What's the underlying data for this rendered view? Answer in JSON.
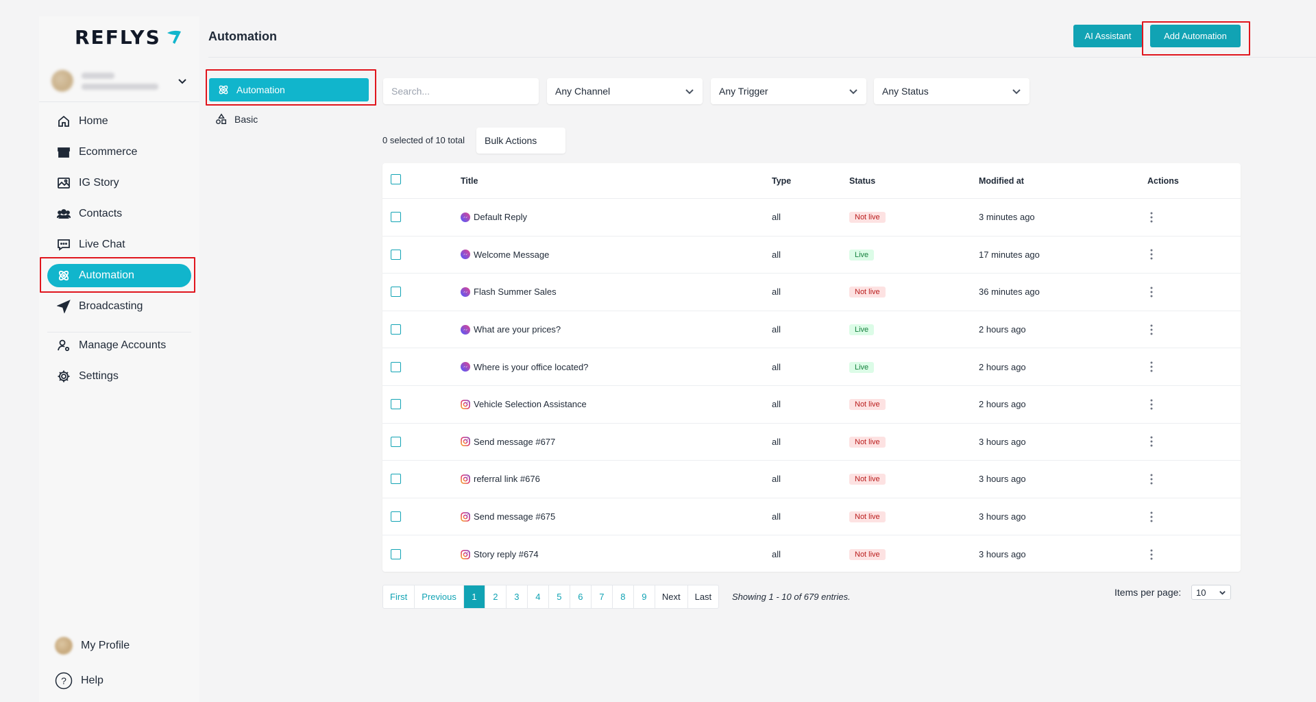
{
  "brand": {
    "name": "REFLYS"
  },
  "sidebar": {
    "items": [
      {
        "label": "Home",
        "icon": "home-icon"
      },
      {
        "label": "Ecommerce",
        "icon": "store-icon"
      },
      {
        "label": "IG Story",
        "icon": "image-icon"
      },
      {
        "label": "Contacts",
        "icon": "users-icon"
      },
      {
        "label": "Live Chat",
        "icon": "chat-icon"
      },
      {
        "label": "Automation",
        "icon": "automation-icon",
        "active": true
      },
      {
        "label": "Broadcasting",
        "icon": "send-icon"
      },
      {
        "label": "Manage Accounts",
        "icon": "user-cog-icon"
      },
      {
        "label": "Settings",
        "icon": "gear-icon"
      }
    ],
    "bottom": {
      "profile_label": "My Profile",
      "help_label": "Help"
    }
  },
  "header": {
    "title": "Automation",
    "ai_assistant_label": "AI Assistant",
    "add_automation_label": "Add Automation"
  },
  "subnav": {
    "automation_label": "Automation",
    "basic_label": "Basic"
  },
  "filters": {
    "search_placeholder": "Search...",
    "channel": "Any Channel",
    "trigger": "Any Trigger",
    "status": "Any Status"
  },
  "selection": {
    "summary": "0 selected of 10 total",
    "bulk_actions_label": "Bulk Actions"
  },
  "table": {
    "columns": {
      "title": "Title",
      "type": "Type",
      "status": "Status",
      "modified": "Modified at",
      "actions": "Actions"
    },
    "rows": [
      {
        "title": "Default Reply",
        "channel": "messenger",
        "type": "all",
        "status": "Not live",
        "live": false,
        "modified": "3 minutes ago"
      },
      {
        "title": "Welcome Message",
        "channel": "messenger",
        "type": "all",
        "status": "Live",
        "live": true,
        "modified": "17 minutes ago"
      },
      {
        "title": "Flash Summer Sales",
        "channel": "messenger",
        "type": "all",
        "status": "Not live",
        "live": false,
        "modified": "36 minutes ago"
      },
      {
        "title": "What are your prices?",
        "channel": "messenger",
        "type": "all",
        "status": "Live",
        "live": true,
        "modified": "2 hours ago"
      },
      {
        "title": "Where is your office located?",
        "channel": "messenger",
        "type": "all",
        "status": "Live",
        "live": true,
        "modified": "2 hours ago"
      },
      {
        "title": "Vehicle Selection Assistance",
        "channel": "instagram",
        "type": "all",
        "status": "Not live",
        "live": false,
        "modified": "2 hours ago"
      },
      {
        "title": "Send message #677",
        "channel": "instagram",
        "type": "all",
        "status": "Not live",
        "live": false,
        "modified": "3 hours ago"
      },
      {
        "title": "referral link #676",
        "channel": "instagram",
        "type": "all",
        "status": "Not live",
        "live": false,
        "modified": "3 hours ago"
      },
      {
        "title": "Send message #675",
        "channel": "instagram",
        "type": "all",
        "status": "Not live",
        "live": false,
        "modified": "3 hours ago"
      },
      {
        "title": "Story reply #674",
        "channel": "instagram",
        "type": "all",
        "status": "Not live",
        "live": false,
        "modified": "3 hours ago"
      }
    ]
  },
  "pagination": {
    "first": "First",
    "previous": "Previous",
    "pages": [
      "1",
      "2",
      "3",
      "4",
      "5",
      "6",
      "7",
      "8",
      "9"
    ],
    "current": "1",
    "next": "Next",
    "last": "Last",
    "showing": "Showing 1 - 10 of 679 entries."
  },
  "items_per_page": {
    "label": "Items per page:",
    "value": "10"
  },
  "colors": {
    "accent": "#11b5cc",
    "button": "#11a3b4",
    "highlight": "#e0151d"
  }
}
